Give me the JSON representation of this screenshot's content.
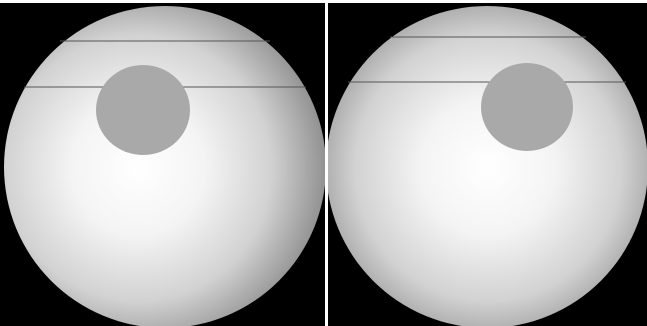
{
  "figure": {
    "background_color": "#000000",
    "divider_color": "#ffffff",
    "panels": [
      {
        "id": "left",
        "sphere_highlight": "#ffffff",
        "sphere_shadow": "#8f8f8f",
        "spot_color": "#a9a9a9",
        "line_color": "#555555",
        "horizontal_lines": 2
      },
      {
        "id": "right",
        "sphere_highlight": "#ffffff",
        "sphere_shadow": "#8f8f8f",
        "spot_color": "#a9a9a9",
        "line_color": "#555555",
        "horizontal_lines": 2
      }
    ]
  }
}
